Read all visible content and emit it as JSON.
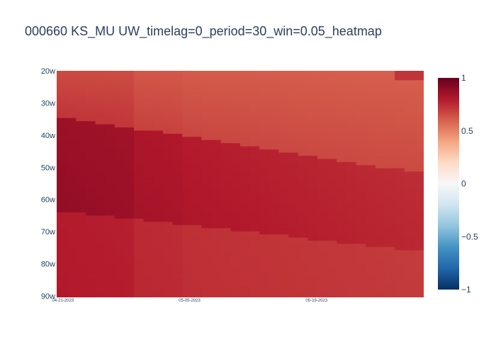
{
  "chart_data": {
    "type": "heatmap",
    "title": "000660 KS_MU UW_timelag=0_period=30_win=0.05_heatmap",
    "xlabel": "",
    "ylabel": "",
    "x_tick_labels": [
      "04-21-2023",
      "05-05-2023",
      "05-19-2023"
    ],
    "y_tick_labels": [
      "20w",
      "30w",
      "40w",
      "50w",
      "60w",
      "70w",
      "80w",
      "90w"
    ],
    "colorbar": {
      "min": -1,
      "max": 1,
      "tick_labels": [
        "1",
        "0.5",
        "0",
        "−0.5",
        "−1"
      ],
      "tick_values": [
        1,
        0.5,
        0,
        -0.5,
        -1
      ],
      "colorscale": "RdBu (reversed)",
      "colors": [
        "#053061",
        "#2166ac",
        "#4393c3",
        "#92c5de",
        "#d1e5f0",
        "#f7f7f7",
        "#fddbc7",
        "#f4a582",
        "#d6604d",
        "#b2182b",
        "#67001f"
      ]
    },
    "value_summary": {
      "top_right_corner": 0.66,
      "top_band": 0.62,
      "middle_left": 0.82,
      "bottom": 0.75
    }
  }
}
